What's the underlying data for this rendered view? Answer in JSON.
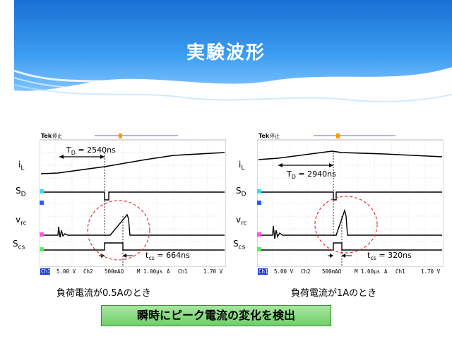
{
  "title": "実験波形",
  "signals": {
    "il": "i",
    "il_sub": "L",
    "sd": "S",
    "sd_sub": "D",
    "vrc": "v",
    "vrc_sub": "rc",
    "scs": "S",
    "scs_sub": "cs"
  },
  "scope_left": {
    "brand": "Tek",
    "status": "停止",
    "td_label": "T",
    "td_sub": "D",
    "td_value": " = 2540ns",
    "tcs_label": "t",
    "tcs_sub": "cs",
    "tcs_value": " = 664ns",
    "footer": {
      "ch1": "Ch1",
      "ch1_scale": "5.00 V",
      "ch2": "Ch2",
      "ch2_scale": "500mAΩ",
      "time": "M 1.00µs",
      "trig_mode": "A",
      "trig_ch": "Ch1",
      "trig_level": "1.70 V"
    },
    "caption": "負荷電流が0.5Aのとき"
  },
  "scope_right": {
    "brand": "Tek",
    "status": "停止",
    "td_label": "T",
    "td_sub": "D",
    "td_value": " = 2940ns",
    "tcs_label": "t",
    "tcs_sub": "cs",
    "tcs_value": " = 320ns",
    "footer": {
      "ch1": "Ch1",
      "ch1_scale": "5.00 V",
      "ch2": "Ch2",
      "ch2_scale": "500mAΩ",
      "time": "M 1.00µs",
      "trig_mode": "A",
      "trig_ch": "Ch1",
      "trig_level": "1.70 V"
    },
    "caption": "負荷電流が1Aのとき"
  },
  "conclusion": "瞬時にピーク電流の変化を検出",
  "colors": {
    "header_blue": "#2f8fe0",
    "scope_bg": "#ffffff",
    "ch_yellow": "#ffee33",
    "ch_cyan": "#33ddff",
    "ch_magenta": "#ff55dd",
    "ch_green": "#55ee66",
    "circle_red": "#e53030",
    "box_green": "#6fcf6a"
  }
}
